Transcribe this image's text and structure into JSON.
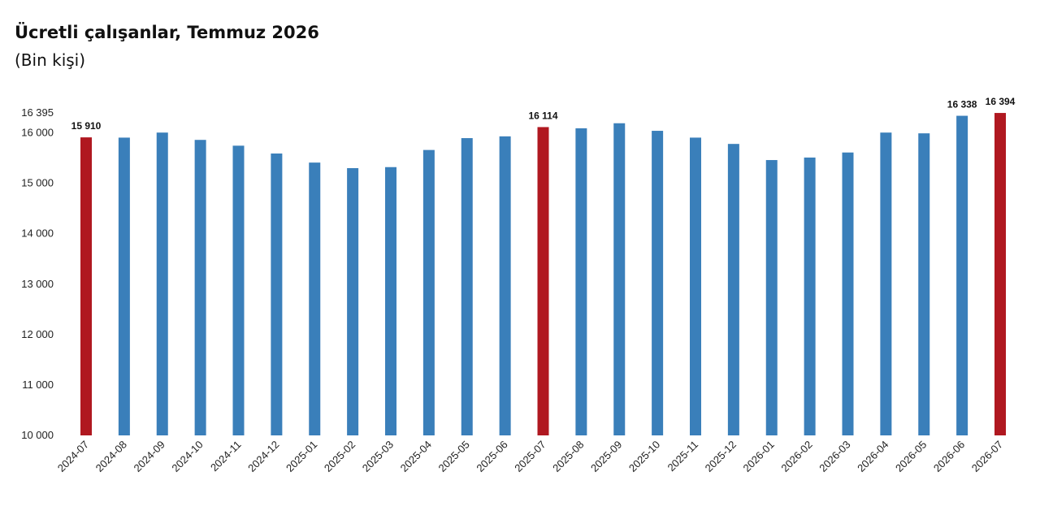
{
  "title": "Ücretli çalışanlar, Temmuz 2026",
  "subtitle": "(Bin kişi)",
  "colors": {
    "normal": "#3a7fba",
    "highlight": "#b01820"
  },
  "chart_data": {
    "type": "bar",
    "title": "Ücretli çalışanlar, Temmuz 2026",
    "subtitle": "(Bin kişi)",
    "categories": [
      "2024-07",
      "2024-08",
      "2024-09",
      "2024-10",
      "2024-11",
      "2024-12",
      "2025-01",
      "2025-02",
      "2025-03",
      "2025-04",
      "2025-05",
      "2025-06",
      "2025-07",
      "2025-08",
      "2025-09",
      "2025-10",
      "2025-11",
      "2025-12",
      "2026-01",
      "2026-02",
      "2026-03",
      "2026-04",
      "2026-05",
      "2026-06",
      "2026-07"
    ],
    "values": [
      15910,
      15905,
      16005,
      15860,
      15745,
      15590,
      15410,
      15300,
      15320,
      15660,
      15895,
      15930,
      16114,
      16090,
      16190,
      16040,
      15905,
      15780,
      15460,
      15510,
      15610,
      16005,
      15990,
      16338,
      16394
    ],
    "highlight": [
      true,
      false,
      false,
      false,
      false,
      false,
      false,
      false,
      false,
      false,
      false,
      false,
      true,
      false,
      false,
      false,
      false,
      false,
      false,
      false,
      false,
      false,
      false,
      false,
      true
    ],
    "data_labels": [
      "15 910",
      "",
      "",
      "",
      "",
      "",
      "",
      "",
      "",
      "",
      "",
      "",
      "16 114",
      "",
      "",
      "",
      "",
      "",
      "",
      "",
      "",
      "",
      "",
      "16 338",
      "16 394"
    ],
    "yticks": [
      10000,
      11000,
      12000,
      13000,
      14000,
      15000,
      16000,
      16395
    ],
    "ytick_labels": [
      "10 000",
      "11 000",
      "12 000",
      "13 000",
      "14 000",
      "15 000",
      "16 000",
      "16 395"
    ],
    "ylim": [
      10000,
      16395
    ],
    "xlabel": "",
    "ylabel": "",
    "grid": false,
    "legend": "none"
  }
}
